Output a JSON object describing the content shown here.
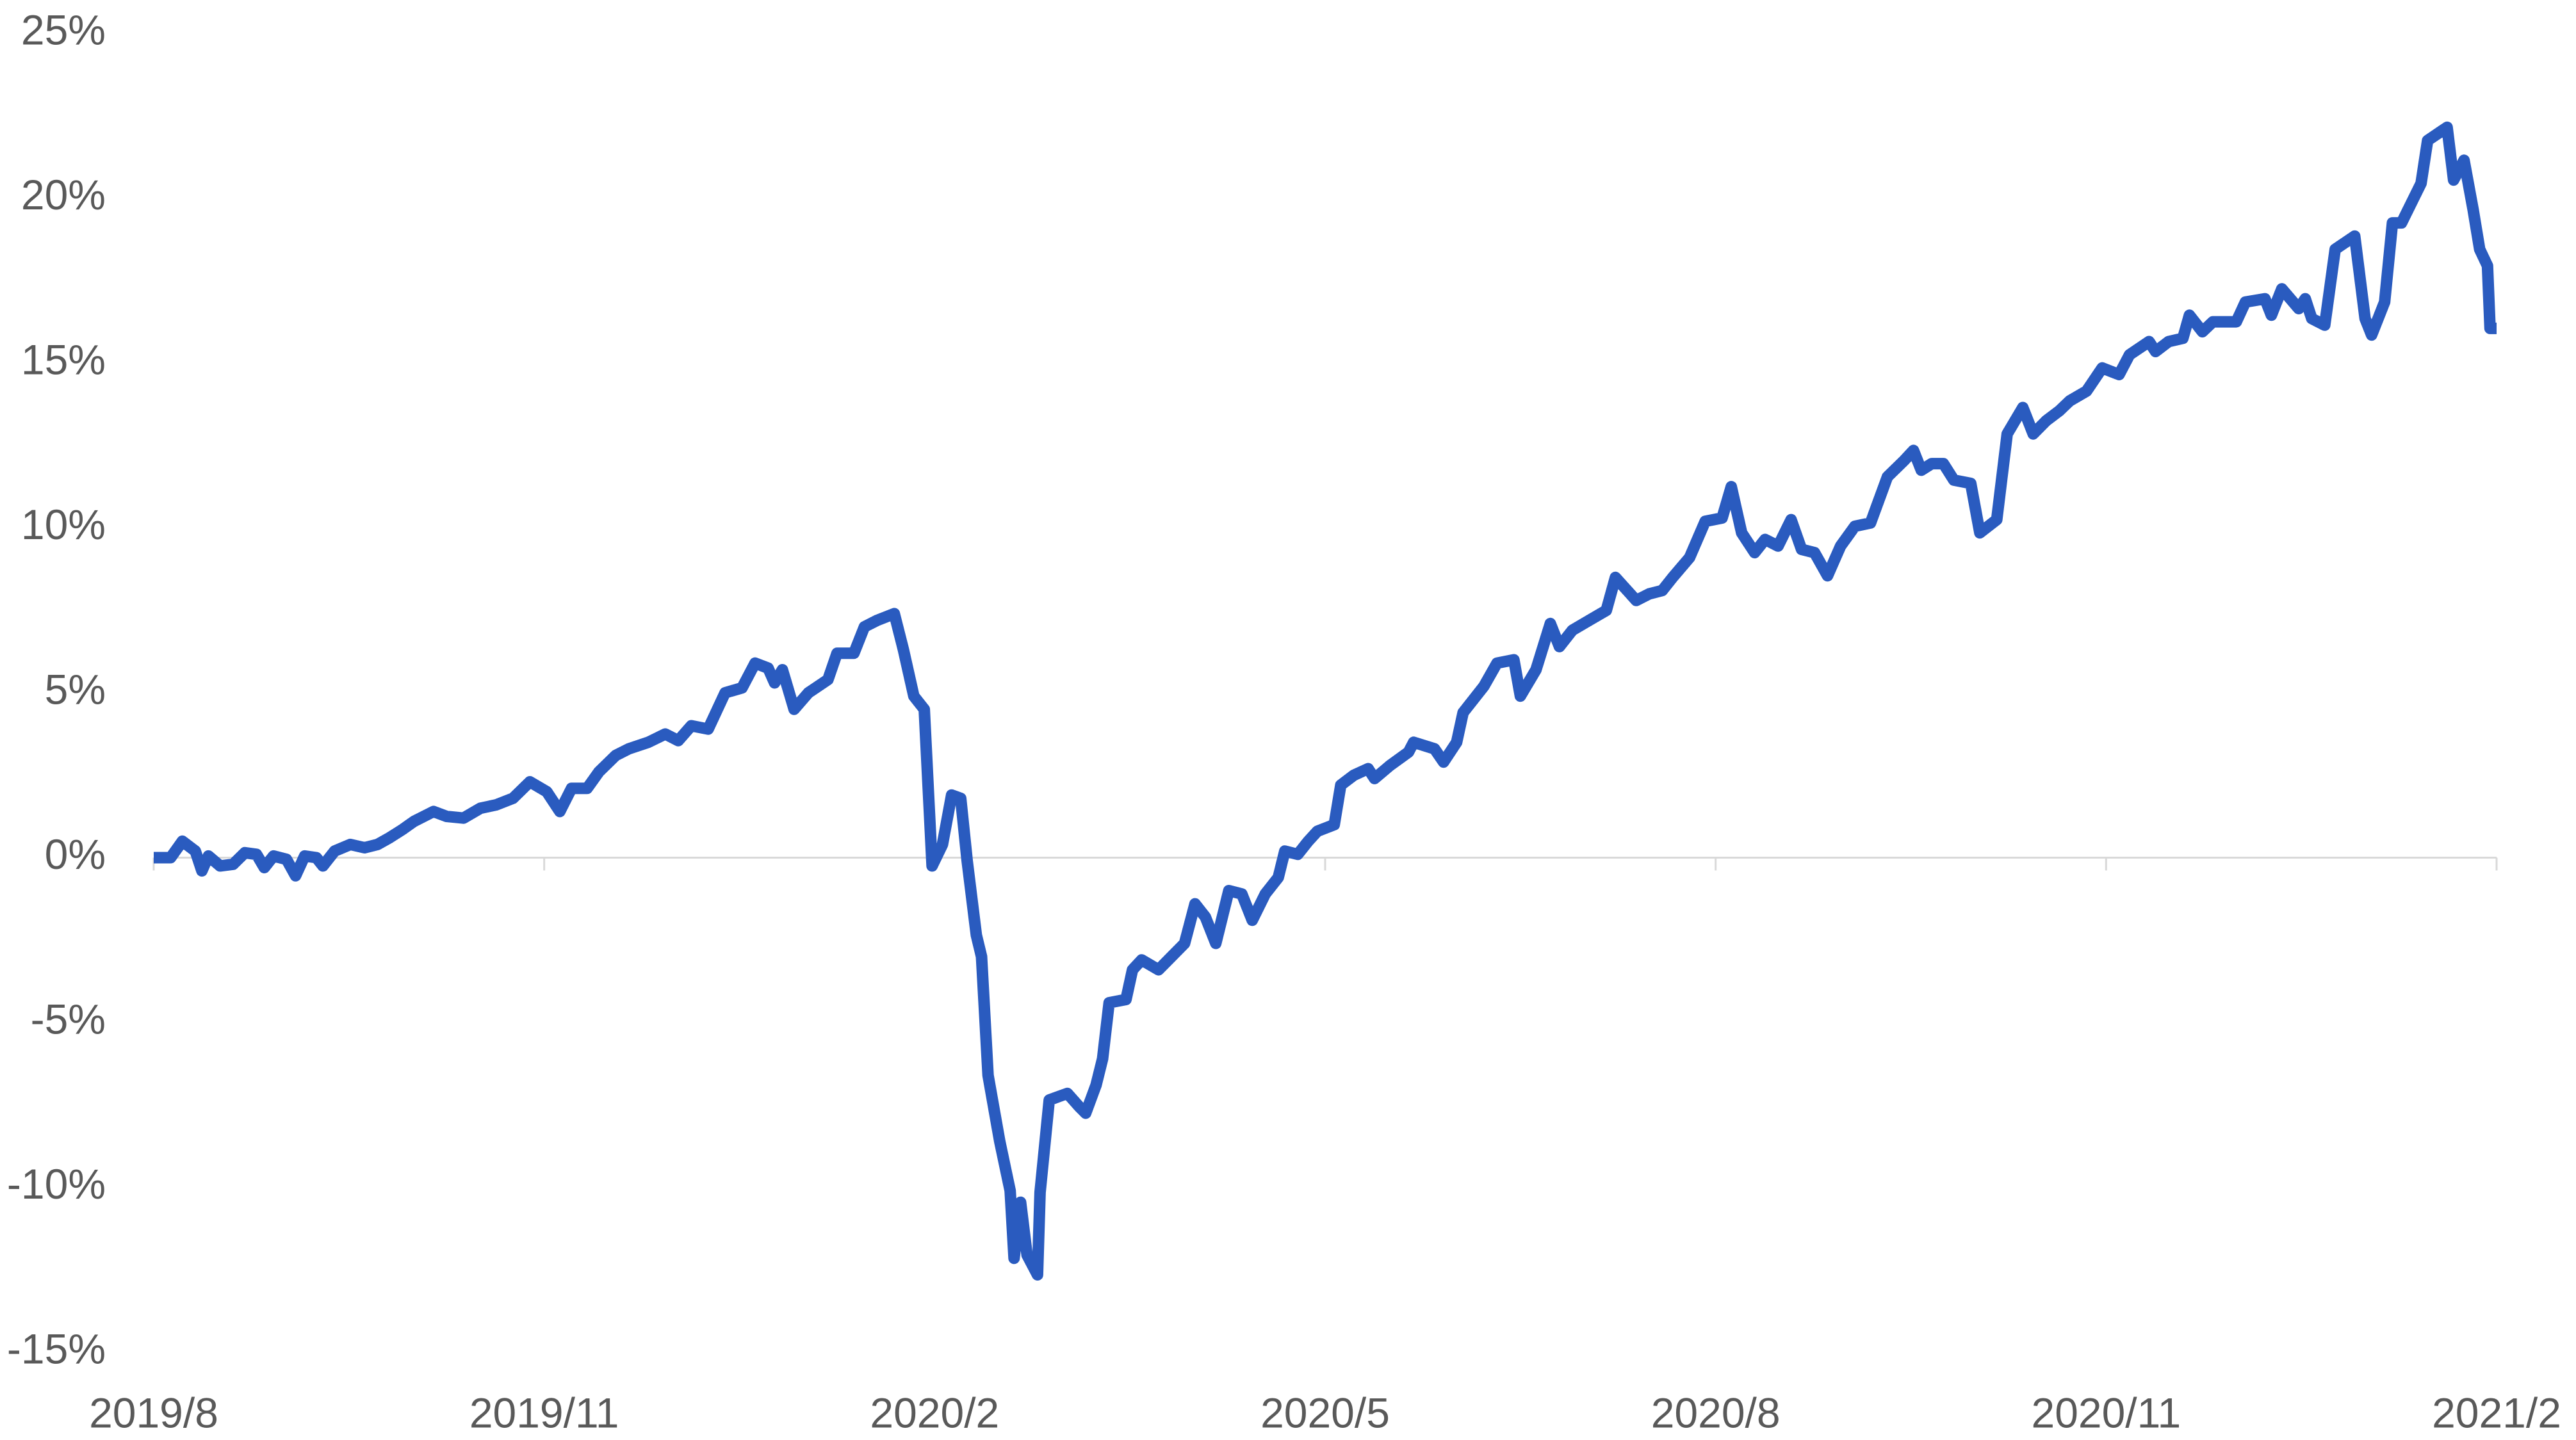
{
  "chart_data": {
    "type": "line",
    "x": [
      0,
      0.13,
      0.22,
      0.32,
      0.37,
      0.42,
      0.51,
      0.61,
      0.7,
      0.79,
      0.85,
      0.92,
      1.02,
      1.09,
      1.16,
      1.25,
      1.3,
      1.39,
      1.51,
      1.62,
      1.72,
      1.81,
      1.91,
      2.0,
      2.15,
      2.25,
      2.38,
      2.51,
      2.63,
      2.76,
      2.89,
      3.02,
      3.12,
      3.21,
      3.33,
      3.42,
      3.55,
      3.65,
      3.8,
      3.93,
      4.03,
      4.13,
      4.26,
      4.39,
      4.52,
      4.62,
      4.72,
      4.77,
      4.83,
      4.92,
      5.03,
      5.18,
      5.25,
      5.38,
      5.46,
      5.56,
      5.69,
      5.76,
      5.84,
      5.92,
      5.98,
      6.06,
      6.13,
      6.2,
      6.25,
      6.32,
      6.36,
      6.41,
      6.5,
      6.58,
      6.61,
      6.66,
      6.71,
      6.79,
      6.81,
      6.88,
      7.02,
      7.11,
      7.16,
      7.24,
      7.29,
      7.34,
      7.47,
      7.52,
      7.59,
      7.72,
      7.82,
      7.92,
      8.0,
      8.08,
      8.16,
      8.26,
      8.36,
      8.44,
      8.54,
      8.64,
      8.69,
      8.79,
      8.87,
      8.94,
      9.07,
      9.12,
      9.22,
      9.33,
      9.38,
      9.5,
      9.64,
      9.68,
      9.84,
      9.91,
      10.01,
      10.06,
      10.22,
      10.32,
      10.45,
      10.5,
      10.62,
      10.73,
      10.8,
      10.9,
      11.03,
      11.16,
      11.23,
      11.39,
      11.49,
      11.59,
      11.67,
      11.8,
      11.92,
      12.05,
      12.12,
      12.2,
      12.3,
      12.38,
      12.48,
      12.58,
      12.66,
      12.76,
      12.86,
      12.96,
      13.07,
      13.19,
      13.32,
      13.45,
      13.52,
      13.58,
      13.66,
      13.75,
      13.83,
      13.96,
      14.03,
      14.16,
      14.24,
      14.36,
      14.44,
      14.54,
      14.64,
      14.72,
      14.85,
      14.97,
      15.1,
      15.18,
      15.33,
      15.38,
      15.48,
      15.59,
      15.64,
      15.74,
      15.82,
      16.0,
      16.07,
      16.22,
      16.27,
      16.35,
      16.48,
      16.53,
      16.58,
      16.68,
      16.76,
      16.91,
      16.99,
      17.04,
      17.14,
      17.2,
      17.27,
      17.42,
      17.47,
      17.62,
      17.67,
      17.75,
      17.82,
      17.87,
      17.93,
      17.95,
      18.0
    ],
    "series": [
      {
        "color": "#2a5bbf",
        "values": [
          0,
          0,
          0.5,
          0.2,
          -0.4,
          0.05,
          -0.25,
          -0.2,
          0.15,
          0.1,
          -0.3,
          0.05,
          -0.05,
          -0.55,
          0.05,
          0,
          -0.25,
          0.2,
          0.4,
          0.3,
          0.4,
          0.6,
          0.85,
          1.1,
          1.4,
          1.25,
          1.2,
          1.5,
          1.6,
          1.8,
          2.3,
          2.0,
          1.4,
          2.1,
          2.1,
          2.6,
          3.1,
          3.3,
          3.5,
          3.75,
          3.55,
          4.0,
          3.9,
          5.0,
          5.15,
          5.9,
          5.75,
          5.3,
          5.7,
          4.5,
          5.0,
          5.4,
          6.2,
          6.2,
          7.0,
          7.2,
          7.4,
          6.3,
          4.9,
          4.5,
          -0.25,
          0.4,
          1.9,
          1.8,
          -0.1,
          -2.35,
          -3.0,
          -6.6,
          -8.6,
          -10.1,
          -12.15,
          -10.45,
          -12.05,
          -12.65,
          -10.15,
          -7.35,
          -7.15,
          -7.55,
          -7.75,
          -6.9,
          -6.1,
          -4.4,
          -4.3,
          -3.4,
          -3.1,
          -3.4,
          -3.0,
          -2.6,
          -1.4,
          -1.8,
          -2.6,
          -1.0,
          -1.1,
          -1.9,
          -1.1,
          -0.6,
          0.2,
          0.1,
          0.5,
          0.8,
          1.0,
          2.2,
          2.5,
          2.7,
          2.4,
          2.8,
          3.2,
          3.5,
          3.3,
          2.9,
          3.5,
          4.4,
          5.2,
          5.9,
          6.0,
          4.9,
          5.7,
          7.1,
          6.4,
          6.9,
          7.2,
          7.5,
          8.5,
          7.8,
          8.0,
          8.1,
          8.5,
          9.1,
          10.2,
          10.3,
          11.25,
          9.85,
          9.25,
          9.65,
          9.45,
          10.25,
          9.35,
          9.25,
          8.55,
          9.45,
          10.05,
          10.15,
          11.55,
          12.05,
          12.35,
          11.75,
          11.95,
          11.95,
          11.45,
          11.35,
          9.85,
          10.25,
          12.85,
          13.65,
          12.85,
          13.25,
          13.55,
          13.85,
          14.15,
          14.85,
          14.65,
          15.25,
          15.65,
          15.35,
          15.65,
          15.75,
          16.45,
          15.95,
          16.25,
          16.25,
          16.85,
          16.95,
          16.45,
          17.25,
          16.65,
          16.95,
          16.35,
          16.15,
          18.45,
          18.85,
          16.35,
          15.85,
          16.85,
          19.25,
          19.25,
          20.45,
          21.75,
          22.15,
          20.55,
          21.15,
          19.65,
          18.45,
          17.95,
          16.05,
          16.05
        ]
      }
    ],
    "xlim": [
      0,
      18
    ],
    "xticks": [
      {
        "value": 0,
        "label": "2019/8"
      },
      {
        "value": 3,
        "label": "2019/11"
      },
      {
        "value": 6,
        "label": "2020/2"
      },
      {
        "value": 9,
        "label": "2020/5"
      },
      {
        "value": 12,
        "label": "2020/8"
      },
      {
        "value": 15,
        "label": "2020/11"
      },
      {
        "value": 18,
        "label": "2021/2"
      }
    ],
    "ylim": [
      -15,
      25
    ],
    "yticks": [
      {
        "value": 25,
        "label": "25%"
      },
      {
        "value": 20,
        "label": "20%"
      },
      {
        "value": 15,
        "label": "15%"
      },
      {
        "value": 10,
        "label": "10%"
      },
      {
        "value": 5,
        "label": "5%"
      },
      {
        "value": 0,
        "label": "0%"
      },
      {
        "value": -5,
        "label": "-5%"
      },
      {
        "value": -10,
        "label": "-10%"
      },
      {
        "value": -15,
        "label": "-15%"
      }
    ],
    "grid": false
  }
}
